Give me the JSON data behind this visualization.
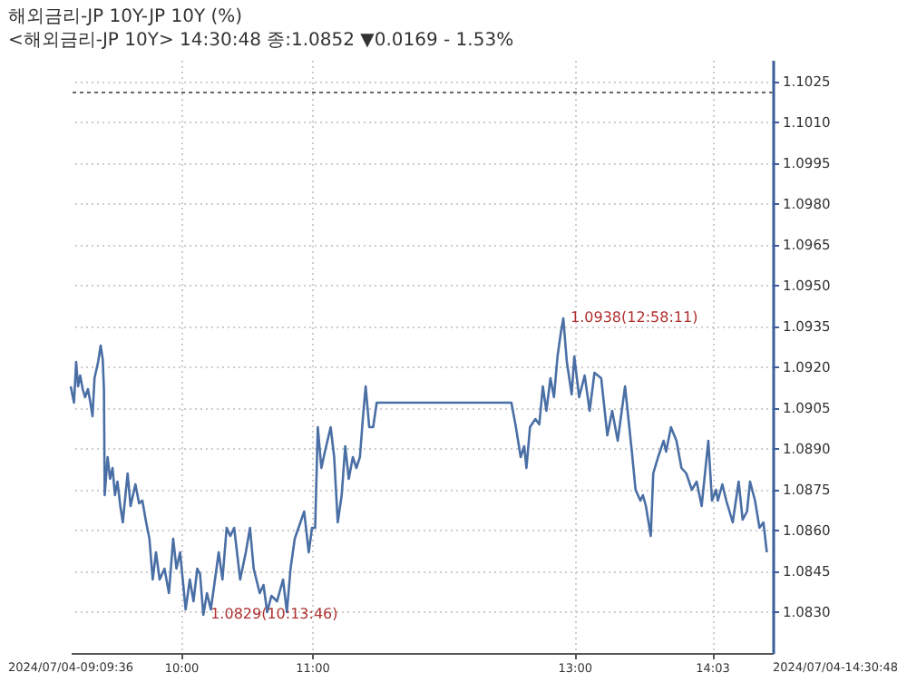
{
  "chart_data": {
    "type": "line",
    "title": "해외금리-JP  10Y-JP 10Y (%)",
    "subtitle": "<해외금리-JP 10Y> 14:30:48 종:1.0852 ▼0.0169 - 1.53%",
    "x": [
      "2024-07-04T09:09:36",
      "2024-07-04T09:11:06",
      "2024-07-04T09:12:04",
      "2024-07-04T09:12:58",
      "2024-07-04T09:13:55",
      "2024-07-04T09:15:04",
      "2024-07-04T09:16:08",
      "2024-07-04T09:17:28",
      "2024-07-04T09:18:36",
      "2024-07-04T09:19:34",
      "2024-07-04T09:20:28",
      "2024-07-04T09:22:08",
      "2024-07-04T09:23:17",
      "2024-07-04T09:24:14",
      "2024-07-04T09:24:47",
      "2024-07-04T09:25:08",
      "2024-07-04T09:26:28",
      "2024-07-04T09:27:36",
      "2024-07-04T09:28:44",
      "2024-07-04T09:29:49",
      "2024-07-04T09:30:58",
      "2024-07-04T09:32:17",
      "2024-07-04T09:33:25",
      "2024-07-04T09:34:30",
      "2024-07-04T09:35:38",
      "2024-07-04T09:36:58",
      "2024-07-04T09:39:11",
      "2024-07-04T09:40:52",
      "2024-07-04T09:42:22",
      "2024-07-04T09:43:52",
      "2024-07-04T09:45:36",
      "2024-07-04T09:47:06",
      "2024-07-04T09:48:36",
      "2024-07-04T09:50:17",
      "2024-07-04T09:52:30",
      "2024-07-04T09:54:32",
      "2024-07-04T09:56:28",
      "2024-07-04T09:57:58",
      "2024-07-04T09:59:38",
      "2024-07-04T10:02:10",
      "2024-07-04T10:04:05",
      "2024-07-04T10:05:46",
      "2024-07-04T10:07:30",
      "2024-07-04T10:08:46",
      "2024-07-04T10:10:16",
      "2024-07-04T10:11:56",
      "2024-07-04T10:13:41",
      "2024-07-04T10:15:36",
      "2024-07-04T10:17:17",
      "2024-07-04T10:19:01",
      "2024-07-04T10:20:56",
      "2024-07-04T10:22:37",
      "2024-07-04T10:24:22",
      "2024-07-04T10:27:07",
      "2024-07-04T10:29:42",
      "2024-07-04T10:31:37",
      "2024-07-04T10:33:18",
      "2024-07-04T10:36:04",
      "2024-07-04T10:37:48",
      "2024-07-04T10:39:29",
      "2024-07-04T10:41:24",
      "2024-07-04T10:43:59",
      "2024-07-04T10:46:44",
      "2024-07-04T10:48:29",
      "2024-07-04T10:50:10",
      "2024-07-04T10:52:05",
      "2024-07-04T10:53:49",
      "2024-07-04T10:56:24",
      "2024-07-04T10:58:30",
      "2024-07-04T11:00:00",
      "2024-07-04T11:01:26",
      "2024-07-04T11:02:38",
      "2024-07-04T11:04:16",
      "2024-07-04T11:05:53",
      "2024-07-04T11:08:31",
      "2024-07-04T11:10:08",
      "2024-07-04T11:11:46",
      "2024-07-04T11:13:34",
      "2024-07-04T11:15:11",
      "2024-07-04T11:16:48",
      "2024-07-04T11:18:40",
      "2024-07-04T11:20:17",
      "2024-07-04T11:21:54",
      "2024-07-04T11:23:20",
      "2024-07-04T11:24:32",
      "2024-07-04T11:26:10",
      "2024-07-04T11:27:58",
      "2024-07-04T11:29:35",
      "2024-07-04T12:31:12",
      "2024-07-04T12:33:04",
      "2024-07-04T12:35:28",
      "2024-07-04T12:37:05",
      "2024-07-04T12:38:06",
      "2024-07-04T12:39:43",
      "2024-07-04T12:42:11",
      "2024-07-04T12:43:59",
      "2024-07-04T12:45:36",
      "2024-07-04T12:47:13",
      "2024-07-04T12:49:05",
      "2024-07-04T12:50:42",
      "2024-07-04T12:52:19",
      "2024-07-04T12:53:42",
      "2024-07-04T12:54:58",
      "2024-07-04T12:56:35",
      "2024-07-04T12:58:48",
      "2024-07-04T13:00:00",
      "2024-07-04T13:02:13",
      "2024-07-04T13:04:44",
      "2024-07-04T13:07:01",
      "2024-07-04T13:09:14",
      "2024-07-04T13:12:18",
      "2024-07-04T13:15:07",
      "2024-07-04T13:17:20",
      "2024-07-04T13:19:52",
      "2024-07-04T13:23:13",
      "2024-07-04T13:26:20",
      "2024-07-04T13:28:01",
      "2024-07-04T13:30:14",
      "2024-07-04T13:31:23",
      "2024-07-04T13:32:46",
      "2024-07-04T13:34:59",
      "2024-07-04T13:36:07",
      "2024-07-04T13:38:20",
      "2024-07-04T13:40:52",
      "2024-07-04T13:42:00",
      "2024-07-04T13:44:13",
      "2024-07-04T13:46:44",
      "2024-07-04T13:49:01",
      "2024-07-04T13:51:14",
      "2024-07-04T13:53:46",
      "2024-07-04T13:55:59",
      "2024-07-04T13:58:16",
      "2024-07-04T14:01:19",
      "2024-07-04T14:03:00",
      "2024-07-04T14:04:48",
      "2024-07-04T14:05:42",
      "2024-07-04T14:07:44",
      "2024-07-04T14:09:32",
      "2024-07-04T14:12:29",
      "2024-07-04T14:15:11",
      "2024-07-04T14:17:02",
      "2024-07-04T14:19:01",
      "2024-07-04T14:20:24",
      "2024-07-04T14:22:41",
      "2024-07-04T14:24:43",
      "2024-07-04T14:26:31",
      "2024-07-04T14:28:05"
    ],
    "series": [
      {
        "color": "#4a6fa5",
        "values": [
          1.0913,
          1.0907,
          1.0922,
          1.0913,
          1.0917,
          1.0912,
          1.0909,
          1.0912,
          1.0907,
          1.0902,
          1.0916,
          1.0922,
          1.0928,
          1.0923,
          1.0912,
          1.0873,
          1.0887,
          1.0879,
          1.0883,
          1.0873,
          1.0878,
          1.0869,
          1.0863,
          1.0872,
          1.0881,
          1.0869,
          1.0877,
          1.087,
          1.0871,
          1.0864,
          1.0857,
          1.0842,
          1.0852,
          1.0842,
          1.0846,
          1.0837,
          1.0857,
          1.0846,
          1.0852,
          1.0831,
          1.0842,
          1.0834,
          1.0846,
          1.0844,
          1.0829,
          1.0837,
          1.0831,
          1.0842,
          1.0852,
          1.0842,
          1.0861,
          1.0858,
          1.0861,
          1.0842,
          1.0852,
          1.0861,
          1.0846,
          1.0837,
          1.084,
          1.083,
          1.0836,
          1.0834,
          1.0842,
          1.083,
          1.0846,
          1.0857,
          1.0861,
          1.0867,
          1.0852,
          1.0861,
          1.0861,
          1.0898,
          1.0883,
          1.0889,
          1.0898,
          1.0887,
          1.0863,
          1.0873,
          1.0891,
          1.0879,
          1.0887,
          1.0883,
          1.0887,
          1.0902,
          1.0913,
          1.0898,
          1.0898,
          1.0907,
          1.0907,
          1.0899,
          1.0887,
          1.0891,
          1.0883,
          1.0898,
          1.0901,
          1.0899,
          1.0913,
          1.0904,
          1.0916,
          1.0909,
          1.0924,
          1.0932,
          1.0938,
          1.0922,
          1.091,
          1.0924,
          1.0909,
          1.0917,
          1.0904,
          1.0918,
          1.0916,
          1.0895,
          1.0904,
          1.0893,
          1.0913,
          1.0889,
          1.0875,
          1.0871,
          1.0873,
          1.0869,
          1.0858,
          1.0881,
          1.0887,
          1.0893,
          1.0889,
          1.0898,
          1.0893,
          1.0883,
          1.0881,
          1.0875,
          1.0878,
          1.0869,
          1.0893,
          1.0871,
          1.0875,
          1.0871,
          1.0877,
          1.0871,
          1.0863,
          1.0878,
          1.0864,
          1.0867,
          1.0878,
          1.0871,
          1.0861,
          1.0863,
          1.0852
        ]
      }
    ],
    "xlim": [
      "2024-07-04T09:09:36",
      "2024-07-04T14:30:48"
    ],
    "xticks": [
      {
        "value": "2024-07-04T10:00",
        "label": "10:00"
      },
      {
        "value": "2024-07-04T11:00",
        "label": "11:00"
      },
      {
        "value": "2024-07-04T13:00",
        "label": "13:00"
      },
      {
        "value": "2024-07-04T14:03",
        "label": "14:03"
      }
    ],
    "ylim": [
      1.0815,
      1.1033
    ],
    "yticks": [
      {
        "value": 1.083,
        "label": "1.0830"
      },
      {
        "value": 1.0845,
        "label": "1.0845"
      },
      {
        "value": 1.086,
        "label": "1.0860"
      },
      {
        "value": 1.0875,
        "label": "1.0875"
      },
      {
        "value": 1.089,
        "label": "1.0890"
      },
      {
        "value": 1.0905,
        "label": "1.0905"
      },
      {
        "value": 1.092,
        "label": "1.0920"
      },
      {
        "value": 1.0935,
        "label": "1.0935"
      },
      {
        "value": 1.095,
        "label": "1.0950"
      },
      {
        "value": 1.0965,
        "label": "1.0965"
      },
      {
        "value": 1.098,
        "label": "1.0980"
      },
      {
        "value": 1.0995,
        "label": "1.0995"
      },
      {
        "value": 1.101,
        "label": "1.1010"
      },
      {
        "value": 1.1025,
        "label": "1.1025"
      }
    ],
    "ref_lines": [
      {
        "axis": "y",
        "value": 1.1021,
        "color": "#666666",
        "line_style": "dotted"
      }
    ],
    "annotations": [
      {
        "text": "1.0938(12:58:11)",
        "x": "2024-07-04T12:54:58",
        "y": 1.0938
      },
      {
        "text": "1.0829(10:13:46)",
        "x": "2024-07-04T10:10:16",
        "y": 1.0829
      },
      "2024/07/04-09:09:36",
      "2024/07/04-14:30:48"
    ],
    "grid": true,
    "legend": false,
    "marker": "none",
    "line_style": "solid"
  }
}
